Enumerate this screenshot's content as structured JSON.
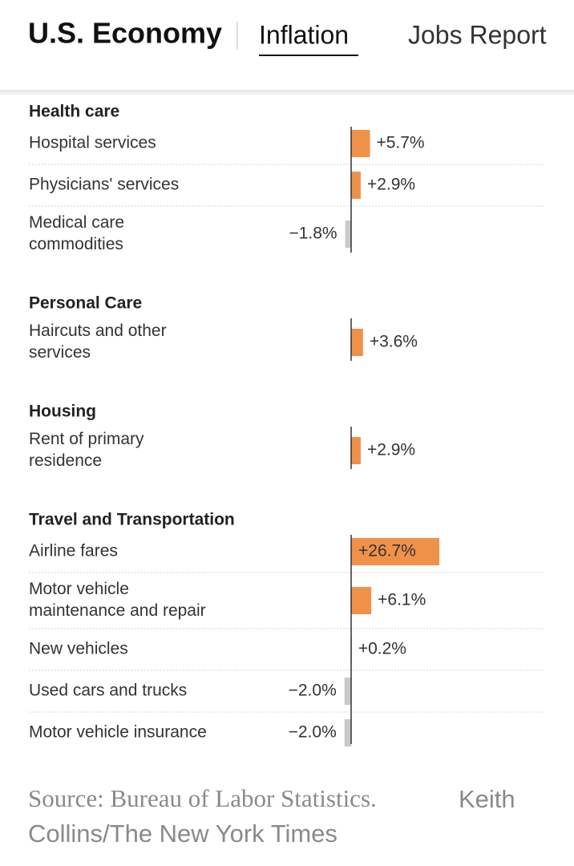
{
  "header": {
    "title": "U.S. Economy",
    "tabs": [
      "Inflation",
      "Jobs Report"
    ]
  },
  "chart_data": {
    "type": "bar",
    "color": "#f0914a",
    "negative_color": "#c9c9c9",
    "groups": [
      {
        "title": "Health care",
        "categories": [
          "Hospital services",
          "Physicians' services",
          [
            "Medical care",
            "commodities"
          ]
        ],
        "values": [
          5.7,
          2.9,
          -1.8
        ],
        "value_labels": [
          "+5.7%",
          "+2.9%",
          "−1.8%"
        ]
      },
      {
        "title": "Personal Care",
        "categories": [
          [
            "Haircuts and other",
            "services"
          ]
        ],
        "values": [
          3.6
        ],
        "value_labels": [
          "+3.6%"
        ]
      },
      {
        "title": "Housing",
        "categories": [
          [
            "Rent of primary",
            "residence"
          ]
        ],
        "values": [
          2.9
        ],
        "value_labels": [
          "+2.9%"
        ]
      },
      {
        "title": "Travel and Transportation",
        "categories": [
          "Airline fares",
          [
            "Motor vehicle",
            "maintenance and repair"
          ],
          "New vehicles",
          "Used cars and trucks",
          "Motor vehicle insurance"
        ],
        "values": [
          26.7,
          6.1,
          0.2,
          -2.0,
          -2.0
        ],
        "value_labels": [
          "+26.7%",
          "+6.1%",
          "+0.2%",
          "−2.0%",
          "−2.0%"
        ]
      }
    ],
    "source": "Source: Bureau of Labor Statistics.",
    "credit": [
      "Keith",
      "Collins/The New York Times"
    ]
  }
}
